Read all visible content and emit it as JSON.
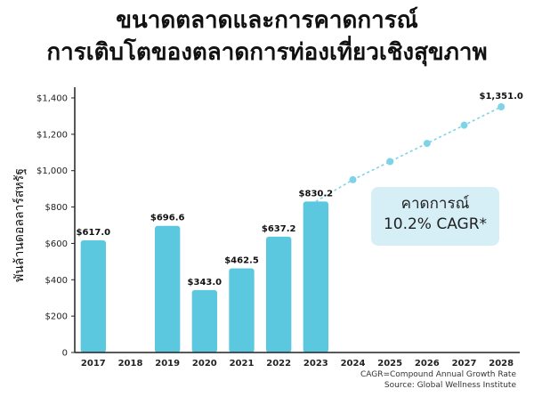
{
  "title_line1": "ขนาดตลาดและการคาดการณ์",
  "title_line2": "การเติบโตของตลาดการท่องเที่ยวเชิงสุขภาพ",
  "forecast_box": {
    "line1": "คาดการณ์",
    "line2": "10.2% CAGR*"
  },
  "footnotes": {
    "cagr": "CAGR=Compound Annual Growth Rate",
    "source": "Source: Global Wellness Institute"
  },
  "colors": {
    "bar": "#5bc8e0",
    "forecast": "#7fd3e8",
    "forecast_box": "#d6eef5",
    "axis": "#222222"
  },
  "chart_data": {
    "type": "bar",
    "ylabel": "พันล้านดอลลาร์สหรัฐ",
    "xlabel": "",
    "ylim": [
      0,
      1400
    ],
    "yticks": [
      0,
      200,
      400,
      600,
      800,
      1000,
      1200,
      1400
    ],
    "ytick_labels": [
      "0",
      "$200",
      "$400",
      "$600",
      "$800",
      "$1,000",
      "$1,200",
      "$1,400"
    ],
    "categories": [
      "2017",
      "2018",
      "2019",
      "2020",
      "2021",
      "2022",
      "2023",
      "2024",
      "2025",
      "2026",
      "2027",
      "2028"
    ],
    "series": [
      {
        "type": "bar",
        "points": [
          {
            "x": "2017",
            "y": 617.0,
            "label": "$617.0"
          },
          {
            "x": "2019",
            "y": 696.6,
            "label": "$696.6"
          },
          {
            "x": "2020",
            "y": 343.0,
            "label": "$343.0"
          },
          {
            "x": "2021",
            "y": 462.5,
            "label": "$462.5"
          },
          {
            "x": "2022",
            "y": 637.2,
            "label": "$637.2"
          },
          {
            "x": "2023",
            "y": 830.2,
            "label": "$830.2"
          }
        ]
      },
      {
        "type": "line",
        "style": "dotted",
        "points": [
          {
            "x": "2023",
            "y": 830.2
          },
          {
            "x": "2024",
            "y": 950
          },
          {
            "x": "2025",
            "y": 1050
          },
          {
            "x": "2026",
            "y": 1150
          },
          {
            "x": "2027",
            "y": 1250
          },
          {
            "x": "2028",
            "y": 1351.0,
            "label": "$1,351.0"
          }
        ]
      }
    ]
  }
}
